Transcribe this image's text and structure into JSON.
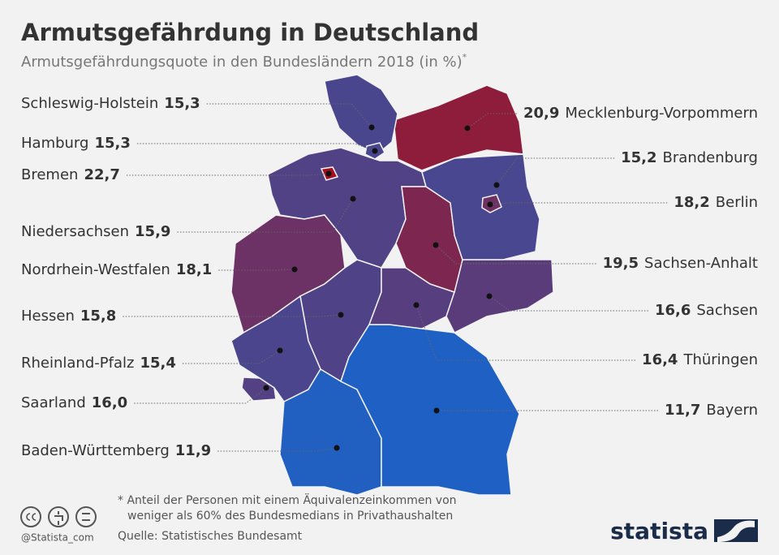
{
  "header": {
    "title": "Armutsgefährdung in Deutschland",
    "subtitle": "Armutsgefährdungsquote in den Bundesländern 2018 (in %)",
    "subtitle_mark": "*"
  },
  "regions": [
    {
      "name": "Schleswig-Holstein",
      "value": 15.3,
      "value_label": "15,3"
    },
    {
      "name": "Hamburg",
      "value": 15.3,
      "value_label": "15,3"
    },
    {
      "name": "Bremen",
      "value": 22.7,
      "value_label": "22,7"
    },
    {
      "name": "Niedersachsen",
      "value": 15.9,
      "value_label": "15,9"
    },
    {
      "name": "Nordrhein-Westfalen",
      "value": 18.1,
      "value_label": "18,1"
    },
    {
      "name": "Hessen",
      "value": 15.8,
      "value_label": "15,8"
    },
    {
      "name": "Rheinland-Pfalz",
      "value": 15.4,
      "value_label": "15,4"
    },
    {
      "name": "Saarland",
      "value": 16.0,
      "value_label": "16,0"
    },
    {
      "name": "Baden-Württemberg",
      "value": 11.9,
      "value_label": "11,9"
    },
    {
      "name": "Mecklenburg-Vorpommern",
      "value": 20.9,
      "value_label": "20,9"
    },
    {
      "name": "Brandenburg",
      "value": 15.2,
      "value_label": "15,2"
    },
    {
      "name": "Berlin",
      "value": 18.2,
      "value_label": "18,2"
    },
    {
      "name": "Sachsen-Anhalt",
      "value": 19.5,
      "value_label": "19,5"
    },
    {
      "name": "Sachsen",
      "value": 16.6,
      "value_label": "16,6"
    },
    {
      "name": "Thüringen",
      "value": 16.4,
      "value_label": "16,4"
    },
    {
      "name": "Bayern",
      "value": 11.7,
      "value_label": "11,7"
    }
  ],
  "footer": {
    "footnote_1": "* Anteil der Personen mit einem Äquivalenzeinkommen von",
    "footnote_2": "weniger als 60% des Bundesmedians in Privathaushalten",
    "source": "Quelle: Statistisches Bundesamt",
    "handle": "@Statista_com",
    "brand": "statista"
  }
}
